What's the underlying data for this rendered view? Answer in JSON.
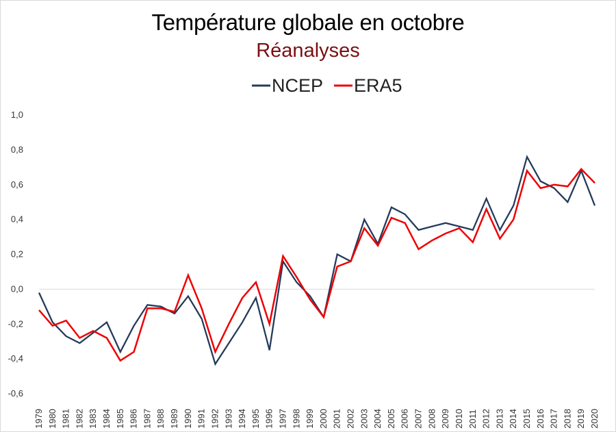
{
  "header": {
    "title": "Température globale en octobre",
    "subtitle": "Réanalyses"
  },
  "colors": {
    "title": "#000000",
    "subtitle": "#7a1012",
    "ncep": "#243a5a",
    "era5": "#ee0000",
    "zero_line": "#d9d9d9"
  },
  "chart_data": {
    "type": "line",
    "title": "Température globale en octobre",
    "subtitle": "Réanalyses",
    "xlabel": "",
    "ylabel": "",
    "ylim": [
      -0.6,
      1.0
    ],
    "yticks": [
      "-0,6",
      "-0,4",
      "-0,2",
      "0,0",
      "0,2",
      "0,4",
      "0,6",
      "0,8",
      "1,0"
    ],
    "ytick_values": [
      -0.6,
      -0.4,
      -0.2,
      0.0,
      0.2,
      0.4,
      0.6,
      0.8,
      1.0
    ],
    "grid": false,
    "legend_position": "top-center",
    "categories": [
      "1979",
      "1980",
      "1981",
      "1982",
      "1983",
      "1984",
      "1985",
      "1986",
      "1987",
      "1988",
      "1989",
      "1990",
      "1991",
      "1992",
      "1993",
      "1994",
      "1995",
      "1996",
      "1997",
      "1998",
      "1999",
      "2000",
      "2001",
      "2002",
      "2003",
      "2004",
      "2005",
      "2006",
      "2007",
      "2008",
      "2009",
      "2010",
      "2011",
      "2012",
      "2013",
      "2014",
      "2015",
      "2016",
      "2017",
      "2018",
      "2019",
      "2020"
    ],
    "series": [
      {
        "name": "NCEP",
        "color": "#243a5a",
        "values": [
          -0.02,
          -0.19,
          -0.27,
          -0.31,
          -0.25,
          -0.19,
          -0.36,
          -0.21,
          -0.09,
          -0.1,
          -0.14,
          -0.04,
          -0.17,
          -0.43,
          -0.31,
          -0.19,
          -0.05,
          -0.35,
          0.16,
          0.04,
          -0.04,
          -0.16,
          0.2,
          0.16,
          0.4,
          0.26,
          0.47,
          0.43,
          0.34,
          0.36,
          0.38,
          0.36,
          0.34,
          0.52,
          0.34,
          0.48,
          0.76,
          0.62,
          0.58,
          0.5,
          0.68,
          0.48
        ]
      },
      {
        "name": "ERA5",
        "color": "#ee0000",
        "values": [
          -0.12,
          -0.21,
          -0.18,
          -0.28,
          -0.24,
          -0.28,
          -0.41,
          -0.36,
          -0.11,
          -0.11,
          -0.13,
          0.08,
          -0.11,
          -0.36,
          -0.2,
          -0.05,
          0.04,
          -0.2,
          0.19,
          0.07,
          -0.06,
          -0.16,
          0.13,
          0.16,
          0.35,
          0.25,
          0.41,
          0.38,
          0.23,
          0.28,
          0.32,
          0.35,
          0.27,
          0.46,
          0.29,
          0.4,
          0.68,
          0.58,
          0.6,
          0.59,
          0.69,
          0.61
        ]
      }
    ]
  }
}
